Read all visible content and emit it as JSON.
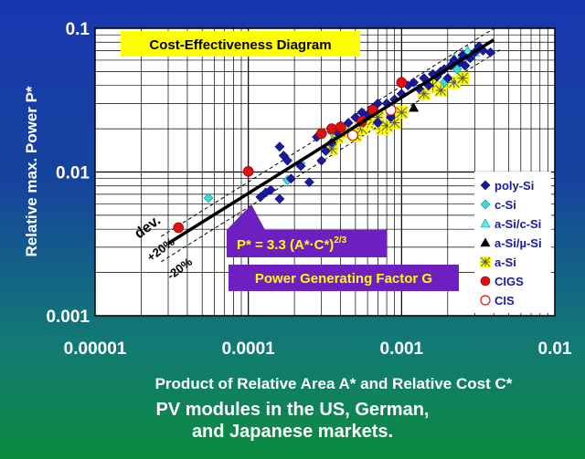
{
  "chart_data": {
    "type": "scatter",
    "title": "Cost-Effectiveness Diagram",
    "xlabel": "Product of Relative Area A* and Relative Cost C*",
    "ylabel": "Relative max. Power P*",
    "xscale": "log",
    "yscale": "log",
    "xlim": [
      1e-05,
      0.01
    ],
    "ylim": [
      0.001,
      0.1
    ],
    "x_ticks": [
      "0.00001",
      "0.0001",
      "0.001",
      "0.01"
    ],
    "y_ticks": [
      "0.001",
      "0.01",
      "0.1"
    ],
    "grid": true,
    "legend_position": "right",
    "fit": {
      "formula": "P* = 3.3 (A*·C*)^(2/3)",
      "formula_main": "P* = 3.3 (A*·C*)",
      "formula_exponent": "2/3",
      "coefficient": 3.3,
      "exponent": 0.6667,
      "x_range": [
        3e-05,
        0.004
      ],
      "band_pct": 20,
      "band_labels": [
        "+20%",
        "-20%"
      ],
      "dev_label": "dev.",
      "name": "Power Generating Factor G",
      "color": "#000000",
      "band_color": "#000000"
    },
    "series": [
      {
        "name": "poly-Si",
        "marker": "diamond",
        "color": "#1a1aa0",
        "x": [
          0.00012,
          0.00014,
          0.00016,
          0.00017,
          0.00018,
          0.00019,
          0.00022,
          0.00025,
          0.00028,
          0.0003,
          0.00032,
          0.00035,
          0.00038,
          0.0004,
          0.00045,
          0.0005,
          0.00055,
          0.0006,
          0.00065,
          0.0007,
          0.0008,
          0.00085,
          0.0009,
          0.001,
          0.0011,
          0.0012,
          0.0013,
          0.0014,
          0.0015,
          0.0016,
          0.0017,
          0.0018,
          0.0019,
          0.002,
          0.0021,
          0.0022,
          0.0024,
          0.0025,
          0.0026,
          0.0028,
          0.003,
          0.0032,
          0.0034,
          0.0038,
          0.00016,
          0.00013,
          0.0007
        ],
        "y": [
          0.0067,
          0.0075,
          0.015,
          0.013,
          0.012,
          0.009,
          0.011,
          0.0085,
          0.0175,
          0.012,
          0.014,
          0.016,
          0.019,
          0.021,
          0.022,
          0.024,
          0.026,
          0.025,
          0.028,
          0.03,
          0.03,
          0.024,
          0.032,
          0.035,
          0.04,
          0.042,
          0.038,
          0.045,
          0.04,
          0.048,
          0.046,
          0.05,
          0.052,
          0.045,
          0.055,
          0.06,
          0.058,
          0.065,
          0.055,
          0.062,
          0.068,
          0.075,
          0.07,
          0.068,
          0.0065,
          0.0072,
          0.022
        ]
      },
      {
        "name": "c-Si",
        "marker": "diamond",
        "color": "#33dddd",
        "x": [
          5.5e-05,
          0.00018,
          0.00022,
          0.00035,
          0.0016,
          0.0018,
          0.002,
          0.0021,
          0.0022,
          0.0024,
          0.0025,
          0.0026,
          0.0028,
          0.003,
          0.0032,
          0.0019,
          0.0023
        ],
        "y": [
          0.0066,
          0.0088,
          0.0115,
          0.019,
          0.048,
          0.05,
          0.045,
          0.055,
          0.06,
          0.058,
          0.065,
          0.055,
          0.062,
          0.068,
          0.072,
          0.042,
          0.052
        ]
      },
      {
        "name": "a-Si/c-Si",
        "marker": "triangle-up",
        "color": "#55eeee",
        "x": [
          0.0022,
          0.0025,
          0.0027,
          0.003
        ],
        "y": [
          0.062,
          0.066,
          0.07,
          0.068
        ]
      },
      {
        "name": "a-Si/µ-Si",
        "marker": "triangle-up",
        "color": "#000000",
        "x": [
          0.0012
        ],
        "y": [
          0.028
        ]
      },
      {
        "name": "a-Si",
        "marker": "asterisk-square",
        "color": "#ffff00",
        "x": [
          0.00035,
          0.00038,
          0.00045,
          0.0005,
          0.00055,
          0.0006,
          0.00065,
          0.0007,
          0.00075,
          0.0008,
          0.0009,
          0.001,
          0.0014,
          0.0016,
          0.0018,
          0.0022,
          0.0025,
          0.00042
        ],
        "y": [
          0.0145,
          0.0175,
          0.019,
          0.018,
          0.02,
          0.022,
          0.023,
          0.024,
          0.02,
          0.021,
          0.022,
          0.026,
          0.035,
          0.04,
          0.037,
          0.042,
          0.045,
          0.02
        ]
      },
      {
        "name": "CIGS",
        "marker": "circle",
        "color": "#e01010",
        "x": [
          3.5e-05,
          0.0001,
          0.0003,
          0.00035,
          0.0004,
          0.00055,
          0.00065,
          0.001
        ],
        "y": [
          0.0041,
          0.0101,
          0.0185,
          0.02,
          0.0205,
          0.0225,
          0.027,
          0.042
        ]
      },
      {
        "name": "CIS",
        "marker": "circle-open",
        "color": "#e01010",
        "x": [
          0.00048,
          0.00085
        ],
        "y": [
          0.018,
          0.027
        ]
      }
    ]
  },
  "footer": {
    "line1": "PV modules in the US, German,",
    "line2": "and Japanese markets."
  }
}
